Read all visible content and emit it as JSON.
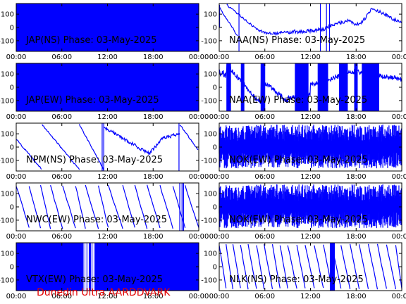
{
  "footer": "Dunedin Ultra AARDDVARK",
  "chart_data": [
    {
      "type": "line",
      "title": "JAP(NS) Phase: 03-May-2025",
      "pattern": "solid",
      "x_ticks": [
        "00:00",
        "06:00",
        "12:00",
        "18:00",
        "00:00"
      ],
      "y_ticks": [
        "100",
        "0",
        "-100"
      ],
      "ylim": [
        -180,
        180
      ],
      "xlim_hours": [
        0,
        24
      ]
    },
    {
      "type": "line",
      "title": "NAA(NS) Phase: 03-May-2025",
      "pattern": "naa_ns",
      "x_ticks": [
        "00:00",
        "06:00",
        "12:00",
        "18:00",
        "00:00"
      ],
      "y_ticks": [
        "100",
        "0",
        "-100"
      ],
      "ylim": [
        -180,
        180
      ],
      "xlim_hours": [
        0,
        24
      ]
    },
    {
      "type": "line",
      "title": "JAP(EW) Phase: 03-May-2025",
      "pattern": "solid",
      "x_ticks": [
        "00:00",
        "06:00",
        "12:00",
        "18:00",
        "00:00"
      ],
      "y_ticks": [
        "100",
        "0",
        "-100"
      ],
      "ylim": [
        -180,
        180
      ],
      "xlim_hours": [
        0,
        24
      ]
    },
    {
      "type": "line",
      "title": "NAA(EW) Phase: 03-May-2025",
      "pattern": "naa_ew",
      "x_ticks": [
        "00:00",
        "06:00",
        "12:00",
        "18:00",
        "00:00"
      ],
      "y_ticks": [
        "100",
        "0",
        "-100"
      ],
      "ylim": [
        -180,
        180
      ],
      "xlim_hours": [
        0,
        24
      ]
    },
    {
      "type": "line",
      "title": "NPM(NS) Phase: 03-May-2025",
      "pattern": "npm",
      "x_ticks": [
        "00:00",
        "06:00",
        "12:00",
        "18:00",
        "00:00"
      ],
      "y_ticks": [
        "100",
        "0",
        "-100"
      ],
      "ylim": [
        -180,
        180
      ],
      "xlim_hours": [
        0,
        24
      ]
    },
    {
      "type": "line",
      "title": "NOK(EW) Phase: 03-May-2025",
      "pattern": "noise",
      "x_ticks": [
        "00:00",
        "06:00",
        "12:00",
        "18:00",
        "00:00"
      ],
      "y_ticks": [
        "100",
        "0",
        "-100"
      ],
      "ylim": [
        -180,
        180
      ],
      "xlim_hours": [
        0,
        24
      ]
    },
    {
      "type": "line",
      "title": "NWC(EW) Phase: 03-May-2025",
      "pattern": "nwc",
      "x_ticks": [
        "00:00",
        "06:00",
        "12:00",
        "18:00",
        "00:00"
      ],
      "y_ticks": [
        "100",
        "0",
        "-100"
      ],
      "ylim": [
        -180,
        180
      ],
      "xlim_hours": [
        0,
        24
      ]
    },
    {
      "type": "line",
      "title": "NOK(EW) Phase: 03-May-2025",
      "pattern": "noise",
      "x_ticks": [
        "00:00",
        "06:00",
        "12:00",
        "18:00",
        "00:00"
      ],
      "y_ticks": [
        "100",
        "0",
        "-100"
      ],
      "ylim": [
        -180,
        180
      ],
      "xlim_hours": [
        0,
        24
      ]
    },
    {
      "type": "line",
      "title": "VTX(EW) Phase: 03-May-2025",
      "pattern": "vtx",
      "x_ticks": [
        "00:00",
        "06:00",
        "12:00",
        "18:00",
        "00:00"
      ],
      "y_ticks": [
        "100",
        "0",
        "-100"
      ],
      "ylim": [
        -180,
        180
      ],
      "xlim_hours": [
        0,
        24
      ]
    },
    {
      "type": "line",
      "title": "NLK(NS) Phase: 03-May-2025",
      "pattern": "nlk",
      "x_ticks": [
        "00:00",
        "06:00",
        "12:00",
        "18:00",
        "00:00"
      ],
      "y_ticks": [
        "100",
        "0",
        "-100"
      ],
      "ylim": [
        -180,
        180
      ],
      "xlim_hours": [
        0,
        24
      ]
    }
  ]
}
